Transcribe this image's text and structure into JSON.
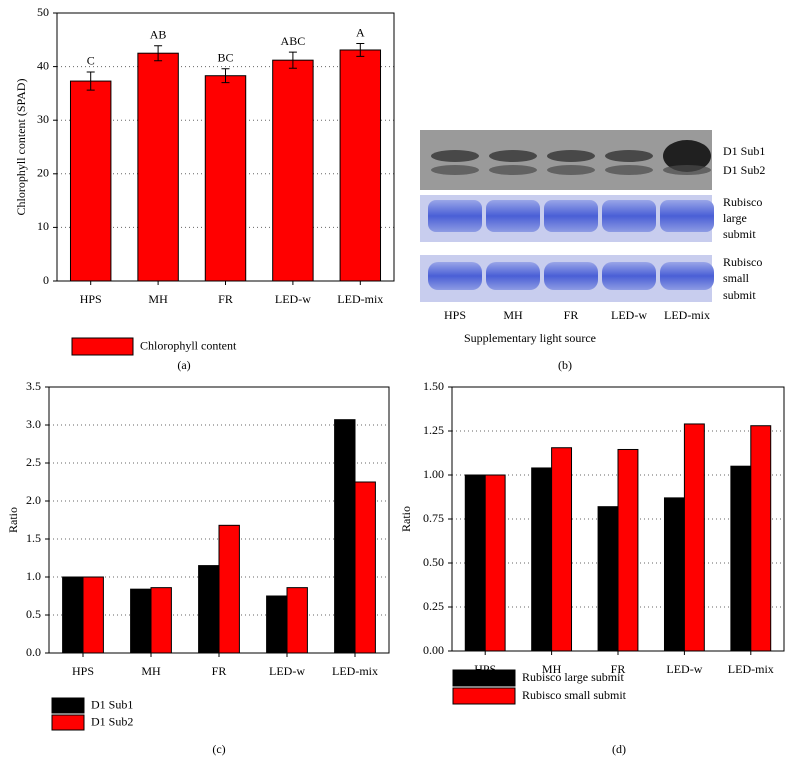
{
  "chart_data": [
    {
      "type": "bar",
      "panel_label": "(a)",
      "y_label": "Chlorophyll content (SPAD)",
      "categories": [
        "HPS",
        "MH",
        "FR",
        "LED-w",
        "LED-mix"
      ],
      "series": [
        {
          "name": "Chlorophyll content",
          "color": "#ff0000",
          "values": [
            37.3,
            42.5,
            38.3,
            41.2,
            43.1
          ],
          "errors": [
            1.7,
            1.4,
            1.3,
            1.5,
            1.2
          ]
        }
      ],
      "annotations": [
        "C",
        "AB",
        "BC",
        "ABC",
        "A"
      ],
      "ylim": [
        0,
        50
      ],
      "yticks": [
        0,
        10,
        20,
        30,
        40,
        50
      ],
      "grid": true,
      "legend": "bottom-left"
    },
    {
      "type": "bar",
      "panel_label": "(c)",
      "y_label": "Ratio",
      "categories": [
        "HPS",
        "MH",
        "FR",
        "LED-w",
        "LED-mix"
      ],
      "series": [
        {
          "name": "D1 Sub1",
          "color": "#000000",
          "values": [
            1.0,
            0.84,
            1.15,
            0.75,
            3.07
          ]
        },
        {
          "name": "D1 Sub2",
          "color": "#ff0000",
          "values": [
            1.0,
            0.86,
            1.68,
            0.86,
            2.25
          ]
        }
      ],
      "ylim": [
        0,
        3.5
      ],
      "yticks": [
        {
          "value": 0,
          "label": "0.0"
        },
        0.5,
        {
          "value": 1,
          "label": "1.0"
        },
        1.5,
        {
          "value": 2,
          "label": "2.0"
        },
        2.5,
        {
          "value": 3,
          "label": "3.0"
        },
        3.5
      ],
      "grid": true,
      "legend": "bottom-left"
    },
    {
      "type": "bar",
      "panel_label": "(d)",
      "y_label": "Ratio",
      "categories": [
        "HPS",
        "MH",
        "FR",
        "LED-w",
        "LED-mix"
      ],
      "series": [
        {
          "name": "Rubisco large submit",
          "color": "#000000",
          "values": [
            1.0,
            1.04,
            0.82,
            0.87,
            1.05
          ]
        },
        {
          "name": "Rubisco small submit",
          "color": "#ff0000",
          "values": [
            1.0,
            1.155,
            1.145,
            1.29,
            1.28
          ]
        }
      ],
      "ylim": [
        0,
        1.5
      ],
      "yticks": [
        {
          "value": 0,
          "label": "0.00"
        },
        {
          "value": 0.25,
          "label": "0.25"
        },
        {
          "value": 0.5,
          "label": "0.50"
        },
        {
          "value": 0.75,
          "label": "0.75"
        },
        {
          "value": 1,
          "label": "1.00"
        },
        {
          "value": 1.25,
          "label": "1.25"
        },
        {
          "value": 1.5,
          "label": "1.50"
        }
      ],
      "grid": true,
      "legend": "bottom-left"
    }
  ],
  "blot": {
    "panel_label": "(b)",
    "x_label": "Supplementary light source",
    "lane_labels": [
      "HPS",
      "MH",
      "FR",
      "LED-w",
      "LED-mix"
    ],
    "d1_labels": [
      "D1 Sub1",
      "D1 Sub2"
    ],
    "rubisco_large_label": [
      "Rubisco",
      "large",
      "submit"
    ],
    "rubisco_small_label": [
      "Rubisco",
      "small",
      "submit"
    ]
  }
}
